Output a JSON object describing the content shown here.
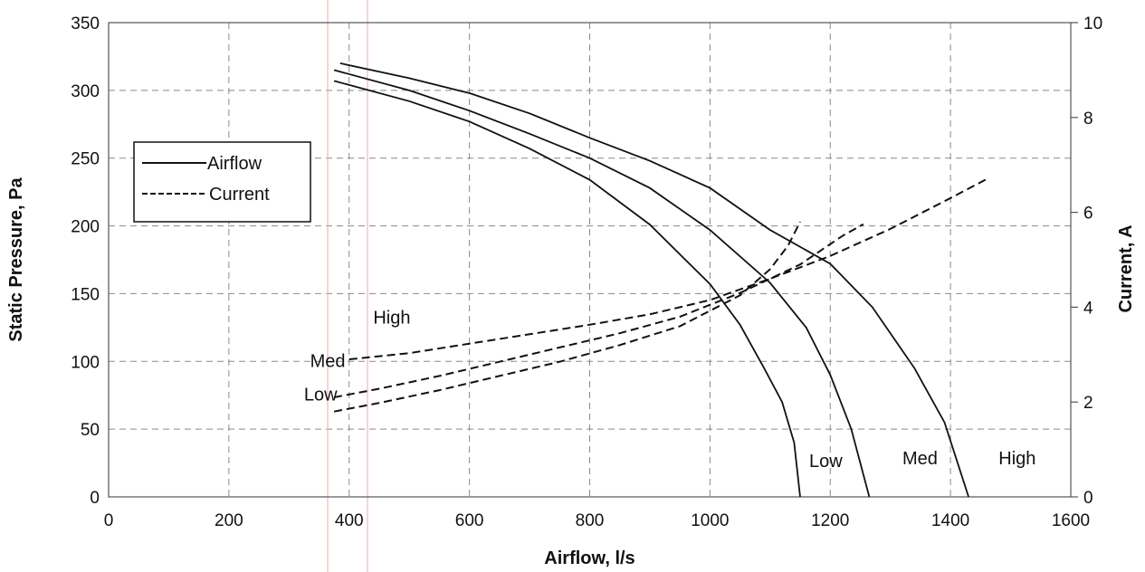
{
  "chart_data": {
    "type": "line",
    "title": "",
    "xlabel": "Airflow, l/s",
    "ylabel": "Static Pressure, Pa",
    "y2label": "Current, A",
    "xlim": [
      0,
      1600
    ],
    "ylim": [
      0,
      350
    ],
    "y2lim": [
      0,
      10
    ],
    "x_ticks": [
      "0",
      "200",
      "400",
      "600",
      "800",
      "1000",
      "1200",
      "1400",
      "1600"
    ],
    "y_ticks": [
      "0",
      "50",
      "100",
      "150",
      "200",
      "250",
      "300",
      "350"
    ],
    "y2_ticks": [
      "0",
      "2",
      "4",
      "6",
      "8",
      "10"
    ],
    "grid": true,
    "legend": {
      "position": "top-left",
      "entries": [
        {
          "label": "Airflow",
          "style": "solid"
        },
        {
          "label": "Current",
          "style": "dashed"
        }
      ]
    },
    "series": [
      {
        "group": "airflow",
        "axis": "left",
        "style": "solid",
        "points": [
          [
            375,
            307
          ],
          [
            500,
            292
          ],
          [
            600,
            277
          ],
          [
            700,
            257
          ],
          [
            800,
            234
          ],
          [
            900,
            201
          ],
          [
            1000,
            157
          ],
          [
            1050,
            127
          ],
          [
            1090,
            95
          ],
          [
            1120,
            70
          ],
          [
            1140,
            40
          ],
          [
            1150,
            0
          ]
        ]
      },
      {
        "group": "airflow",
        "axis": "left",
        "style": "solid",
        "points": [
          [
            375,
            315
          ],
          [
            500,
            300
          ],
          [
            600,
            285
          ],
          [
            700,
            268
          ],
          [
            800,
            250
          ],
          [
            900,
            228
          ],
          [
            1000,
            197
          ],
          [
            1100,
            158
          ],
          [
            1160,
            125
          ],
          [
            1200,
            90
          ],
          [
            1235,
            50
          ],
          [
            1265,
            0
          ]
        ]
      },
      {
        "group": "airflow",
        "axis": "left",
        "style": "solid",
        "points": [
          [
            385,
            320
          ],
          [
            500,
            309
          ],
          [
            600,
            298
          ],
          [
            700,
            283
          ],
          [
            800,
            265
          ],
          [
            900,
            248
          ],
          [
            1000,
            228
          ],
          [
            1100,
            197
          ],
          [
            1200,
            172
          ],
          [
            1270,
            140
          ],
          [
            1340,
            95
          ],
          [
            1390,
            55
          ],
          [
            1430,
            0
          ]
        ]
      },
      {
        "group": "current",
        "axis": "right",
        "style": "dashed",
        "points": [
          [
            375,
            1.8
          ],
          [
            450,
            1.98
          ],
          [
            550,
            2.25
          ],
          [
            650,
            2.55
          ],
          [
            750,
            2.85
          ],
          [
            850,
            3.2
          ],
          [
            950,
            3.6
          ],
          [
            1050,
            4.25
          ],
          [
            1100,
            4.8
          ],
          [
            1130,
            5.3
          ],
          [
            1150,
            5.8
          ]
        ]
      },
      {
        "group": "current",
        "axis": "right",
        "style": "dashed",
        "points": [
          [
            375,
            2.1
          ],
          [
            450,
            2.28
          ],
          [
            550,
            2.55
          ],
          [
            650,
            2.85
          ],
          [
            750,
            3.15
          ],
          [
            850,
            3.45
          ],
          [
            950,
            3.8
          ],
          [
            1050,
            4.3
          ],
          [
            1150,
            4.9
          ],
          [
            1220,
            5.5
          ],
          [
            1255,
            5.75
          ]
        ]
      },
      {
        "group": "current",
        "axis": "right",
        "style": "dashed",
        "points": [
          [
            400,
            2.9
          ],
          [
            500,
            3.03
          ],
          [
            600,
            3.23
          ],
          [
            700,
            3.43
          ],
          [
            800,
            3.63
          ],
          [
            900,
            3.85
          ],
          [
            1000,
            4.15
          ],
          [
            1100,
            4.6
          ],
          [
            1200,
            5.08
          ],
          [
            1300,
            5.65
          ],
          [
            1400,
            6.3
          ],
          [
            1460,
            6.7
          ]
        ]
      }
    ],
    "annotations": [
      {
        "text": "High",
        "x": 440,
        "y": 128
      },
      {
        "text": "Med",
        "x": 335,
        "y": 96
      },
      {
        "text": "Low",
        "x": 325,
        "y": 71
      },
      {
        "text": "Low",
        "x": 1165,
        "y": 22
      },
      {
        "text": "Med",
        "x": 1320,
        "y": 24
      },
      {
        "text": "High",
        "x": 1480,
        "y": 24
      }
    ]
  }
}
